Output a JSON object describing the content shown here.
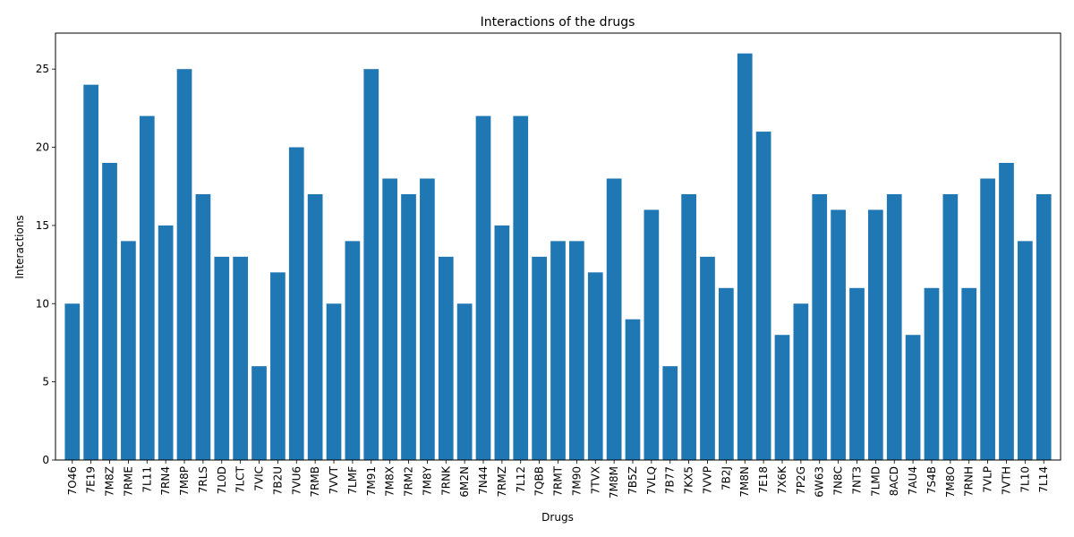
{
  "chart_data": {
    "type": "bar",
    "title": "Interactions of the drugs",
    "xlabel": "Drugs",
    "ylabel": "Interactions",
    "ylim": [
      0,
      27.3
    ],
    "yticks": [
      0,
      5,
      10,
      15,
      20,
      25
    ],
    "grid": false,
    "bar_color": "#1f77b4",
    "categories": [
      "7O46",
      "7E19",
      "7M8Z",
      "7RME",
      "7L11",
      "7RN4",
      "7M8P",
      "7RLS",
      "7L0D",
      "7LCT",
      "7VIC",
      "7B2U",
      "7VU6",
      "7RMB",
      "7VVT",
      "7LMF",
      "7M91",
      "7M8X",
      "7RM2",
      "7M8Y",
      "7RNK",
      "6M2N",
      "7N44",
      "7RMZ",
      "7L12",
      "7QBB",
      "7RMT",
      "7M90",
      "7TVX",
      "7M8M",
      "7B5Z",
      "7VLQ",
      "7B77",
      "7KX5",
      "7VVP",
      "7B2J",
      "7M8N",
      "7E18",
      "7X6K",
      "7P2G",
      "6W63",
      "7N8C",
      "7NT3",
      "7LMD",
      "8ACD",
      "7AU4",
      "7S4B",
      "7M8O",
      "7RNH",
      "7VLP",
      "7VTH",
      "7L10",
      "7L14"
    ],
    "values": [
      10,
      24,
      19,
      14,
      22,
      15,
      25,
      17,
      13,
      13,
      6,
      12,
      20,
      17,
      10,
      14,
      25,
      18,
      17,
      18,
      13,
      10,
      22,
      15,
      22,
      13,
      14,
      14,
      12,
      18,
      9,
      16,
      6,
      17,
      13,
      11,
      26,
      21,
      8,
      10,
      17,
      16,
      11,
      16,
      17,
      8,
      11,
      17,
      11,
      18,
      19,
      14,
      17
    ]
  }
}
